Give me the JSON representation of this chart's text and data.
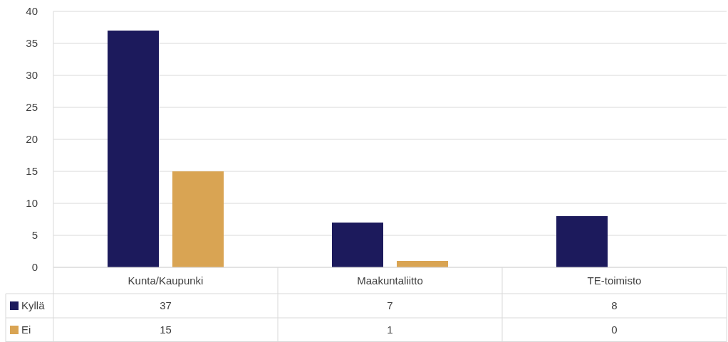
{
  "chart_data": {
    "type": "bar",
    "categories": [
      "Kunta/Kaupunki",
      "Maakuntaliitto",
      "TE-toimisto"
    ],
    "series": [
      {
        "name": "Kyllä",
        "color": "#1c1a5c",
        "values": [
          37,
          7,
          8
        ]
      },
      {
        "name": "Ei",
        "color": "#d9a453",
        "values": [
          15,
          1,
          0
        ]
      }
    ],
    "ylim": [
      0,
      40
    ],
    "yticks": [
      0,
      5,
      10,
      15,
      20,
      25,
      30,
      35,
      40
    ],
    "grid": "y",
    "legend": "bottom",
    "data_labels": true
  }
}
